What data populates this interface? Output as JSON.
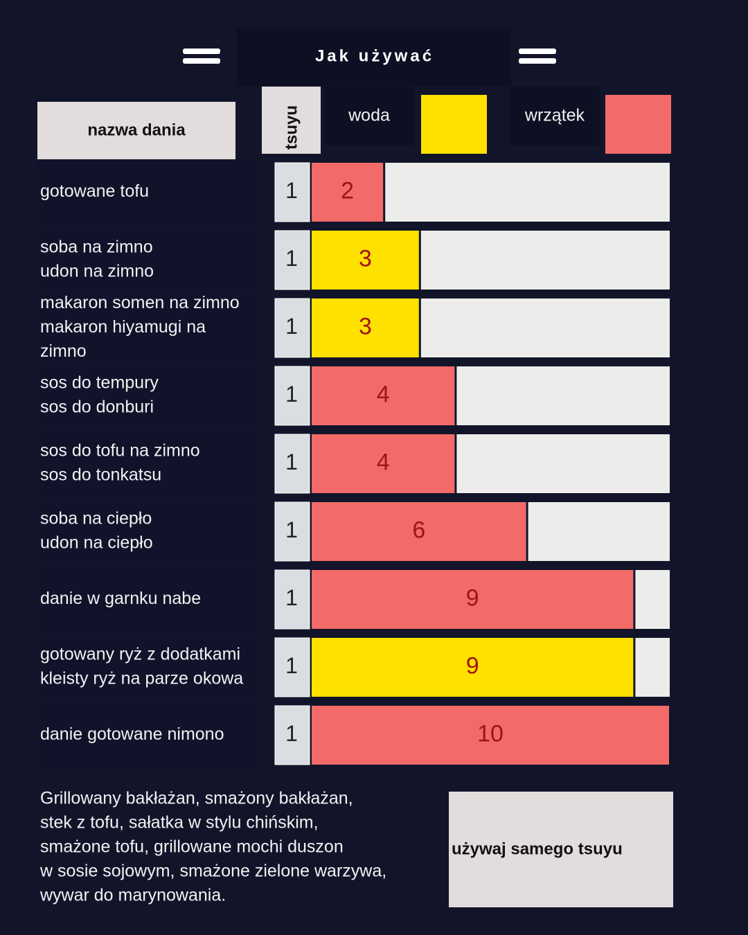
{
  "header": {
    "title": "Jak używać"
  },
  "legend": {
    "dish": "nazwa dania",
    "tsuyu": "tsuyu",
    "items": [
      {
        "label": "woda",
        "color": "#ffe100"
      },
      {
        "label": "wrzątek",
        "color": "#f26b69"
      }
    ]
  },
  "rows": [
    {
      "name": [
        "gotowane tofu"
      ],
      "tsuyu": 1,
      "ratio": 2,
      "color": "#f26b69"
    },
    {
      "name": [
        "soba na zimno",
        "udon na zimno"
      ],
      "tsuyu": 1,
      "ratio": 3,
      "color": "#ffe100"
    },
    {
      "name": [
        "makaron somen na zimno",
        "makaron hiyamugi na",
        "zimno"
      ],
      "tsuyu": 1,
      "ratio": 3,
      "color": "#ffe100"
    },
    {
      "name": [
        "sos do tempury",
        "sos do donburi"
      ],
      "tsuyu": 1,
      "ratio": 4,
      "color": "#f26b69"
    },
    {
      "name": [
        "sos do tofu na zimno",
        "sos do tonkatsu"
      ],
      "tsuyu": 1,
      "ratio": 4,
      "color": "#f26b69"
    },
    {
      "name": [
        "soba na ciepło",
        "udon na ciepło"
      ],
      "tsuyu": 1,
      "ratio": 6,
      "color": "#f26b69"
    },
    {
      "name": [
        "danie w garnku nabe"
      ],
      "tsuyu": 1,
      "ratio": 9,
      "color": "#f26b69"
    },
    {
      "name": [
        "gotowany ryż z dodatkami",
        "kleisty ryż na parze okowa"
      ],
      "tsuyu": 1,
      "ratio": 9,
      "color": "#ffe100"
    },
    {
      "name": [
        "danie gotowane nimono"
      ],
      "tsuyu": 1,
      "ratio": 10,
      "color": "#f26b69"
    }
  ],
  "footer": {
    "text": [
      "Grillowany bakłażan, smażony bakłażan,",
      "stek z tofu, sałatka w stylu chińskim,",
      "smażone tofu, grillowane mochi duszon",
      " w sosie sojowym, smażone zielone warzywa,",
      "wywar do marynowania."
    ],
    "note": "używaj samego tsuyu"
  }
}
